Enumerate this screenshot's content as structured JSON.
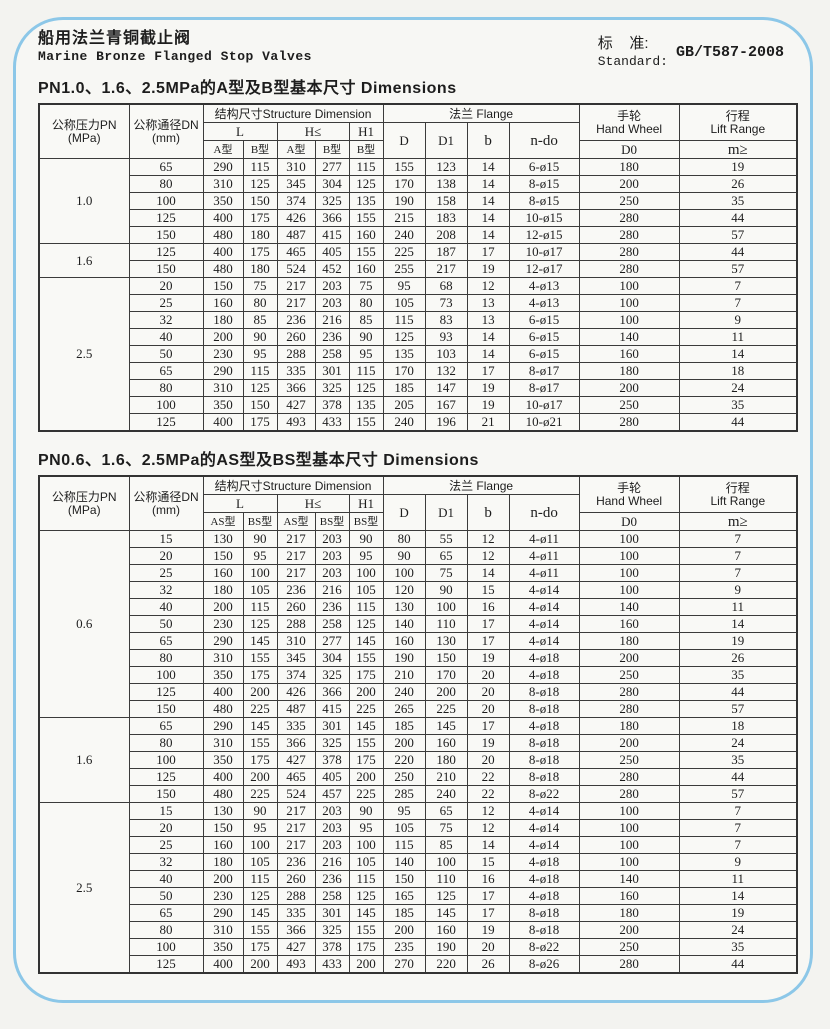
{
  "page": {
    "title_zh": "船用法兰青铜截止阀",
    "title_en": "Marine Bronze Flanged Stop Valves",
    "standard": {
      "label_zh": "标    准:",
      "label_en": "Standard:",
      "value": "GB/T587-2008"
    }
  },
  "colors": {
    "frame_border": "#8cc7e8",
    "grid_line": "#3b3b3b",
    "background": "#f7f7f4"
  },
  "tables": [
    {
      "title": "PN1.0、1.6、2.5MPa的A型及B型基本尺寸 Dimensions",
      "header": {
        "pressure_zh": "公称压力PN",
        "pressure_unit": "(MPa)",
        "dn_zh": "公称通径DN",
        "dn_unit": "(mm)",
        "structure": "结构尺寸Structure Dimension",
        "col_L": "L",
        "col_H": "H≤",
        "col_H1": "H1",
        "type_a": "A型",
        "type_b": "B型",
        "flange": "法兰 Flange",
        "col_D": "D",
        "col_D1": "D1",
        "col_b": "b",
        "col_ndo": "n-do",
        "handwheel_zh": "手轮",
        "handwheel_en": "Hand Wheel",
        "col_D0": "D0",
        "lift_zh": "行程",
        "lift_en": "Lift Range",
        "col_m": "m≥"
      },
      "sections": [
        {
          "pn": "1.0",
          "rows": [
            [
              "65",
              "290",
              "115",
              "310",
              "277",
              "115",
              "155",
              "123",
              "14",
              "6-ø15",
              "180",
              "19"
            ],
            [
              "80",
              "310",
              "125",
              "345",
              "304",
              "125",
              "170",
              "138",
              "14",
              "8-ø15",
              "200",
              "26"
            ],
            [
              "100",
              "350",
              "150",
              "374",
              "325",
              "135",
              "190",
              "158",
              "14",
              "8-ø15",
              "250",
              "35"
            ],
            [
              "125",
              "400",
              "175",
              "426",
              "366",
              "155",
              "215",
              "183",
              "14",
              "10-ø15",
              "280",
              "44"
            ],
            [
              "150",
              "480",
              "180",
              "487",
              "415",
              "160",
              "240",
              "208",
              "14",
              "12-ø15",
              "280",
              "57"
            ]
          ]
        },
        {
          "pn": "1.6",
          "rows": [
            [
              "125",
              "400",
              "175",
              "465",
              "405",
              "155",
              "225",
              "187",
              "17",
              "10-ø17",
              "280",
              "44"
            ],
            [
              "150",
              "480",
              "180",
              "524",
              "452",
              "160",
              "255",
              "217",
              "19",
              "12-ø17",
              "280",
              "57"
            ]
          ]
        },
        {
          "pn": "2.5",
          "rows": [
            [
              "20",
              "150",
              "75",
              "217",
              "203",
              "75",
              "95",
              "68",
              "12",
              "4-ø13",
              "100",
              "7"
            ],
            [
              "25",
              "160",
              "80",
              "217",
              "203",
              "80",
              "105",
              "73",
              "13",
              "4-ø13",
              "100",
              "7"
            ],
            [
              "32",
              "180",
              "85",
              "236",
              "216",
              "85",
              "115",
              "83",
              "13",
              "6-ø15",
              "100",
              "9"
            ],
            [
              "40",
              "200",
              "90",
              "260",
              "236",
              "90",
              "125",
              "93",
              "14",
              "6-ø15",
              "140",
              "11"
            ],
            [
              "50",
              "230",
              "95",
              "288",
              "258",
              "95",
              "135",
              "103",
              "14",
              "6-ø15",
              "160",
              "14"
            ],
            [
              "65",
              "290",
              "115",
              "335",
              "301",
              "115",
              "170",
              "132",
              "17",
              "8-ø17",
              "180",
              "18"
            ],
            [
              "80",
              "310",
              "125",
              "366",
              "325",
              "125",
              "185",
              "147",
              "19",
              "8-ø17",
              "200",
              "24"
            ],
            [
              "100",
              "350",
              "150",
              "427",
              "378",
              "135",
              "205",
              "167",
              "19",
              "10-ø17",
              "250",
              "35"
            ],
            [
              "125",
              "400",
              "175",
              "493",
              "433",
              "155",
              "240",
              "196",
              "21",
              "10-ø21",
              "280",
              "44"
            ]
          ]
        }
      ]
    },
    {
      "title": "PN0.6、1.6、2.5MPa的AS型及BS型基本尺寸 Dimensions",
      "header": {
        "pressure_zh": "公称压力PN",
        "pressure_unit": "(MPa)",
        "dn_zh": "公称通径DN",
        "dn_unit": "(mm)",
        "structure": "结构尺寸Structure Dimension",
        "col_L": "L",
        "col_H": "H≤",
        "col_H1": "H1",
        "type_a": "AS型",
        "type_b": "BS型",
        "flange": "法兰 Flange",
        "col_D": "D",
        "col_D1": "D1",
        "col_b": "b",
        "col_ndo": "n-do",
        "handwheel_zh": "手轮",
        "handwheel_en": "Hand Wheel",
        "col_D0": "D0",
        "lift_zh": "行程",
        "lift_en": "Lift Range",
        "col_m": "m≥"
      },
      "sections": [
        {
          "pn": "0.6",
          "rows": [
            [
              "15",
              "130",
              "90",
              "217",
              "203",
              "90",
              "80",
              "55",
              "12",
              "4-ø11",
              "100",
              "7"
            ],
            [
              "20",
              "150",
              "95",
              "217",
              "203",
              "95",
              "90",
              "65",
              "12",
              "4-ø11",
              "100",
              "7"
            ],
            [
              "25",
              "160",
              "100",
              "217",
              "203",
              "100",
              "100",
              "75",
              "14",
              "4-ø11",
              "100",
              "7"
            ],
            [
              "32",
              "180",
              "105",
              "236",
              "216",
              "105",
              "120",
              "90",
              "15",
              "4-ø14",
              "100",
              "9"
            ],
            [
              "40",
              "200",
              "115",
              "260",
              "236",
              "115",
              "130",
              "100",
              "16",
              "4-ø14",
              "140",
              "11"
            ],
            [
              "50",
              "230",
              "125",
              "288",
              "258",
              "125",
              "140",
              "110",
              "17",
              "4-ø14",
              "160",
              "14"
            ],
            [
              "65",
              "290",
              "145",
              "310",
              "277",
              "145",
              "160",
              "130",
              "17",
              "4-ø14",
              "180",
              "19"
            ],
            [
              "80",
              "310",
              "155",
              "345",
              "304",
              "155",
              "190",
              "150",
              "19",
              "4-ø18",
              "200",
              "26"
            ],
            [
              "100",
              "350",
              "175",
              "374",
              "325",
              "175",
              "210",
              "170",
              "20",
              "4-ø18",
              "250",
              "35"
            ],
            [
              "125",
              "400",
              "200",
              "426",
              "366",
              "200",
              "240",
              "200",
              "20",
              "8-ø18",
              "280",
              "44"
            ],
            [
              "150",
              "480",
              "225",
              "487",
              "415",
              "225",
              "265",
              "225",
              "20",
              "8-ø18",
              "280",
              "57"
            ]
          ]
        },
        {
          "pn": "1.6",
          "rows": [
            [
              "65",
              "290",
              "145",
              "335",
              "301",
              "145",
              "185",
              "145",
              "17",
              "4-ø18",
              "180",
              "18"
            ],
            [
              "80",
              "310",
              "155",
              "366",
              "325",
              "155",
              "200",
              "160",
              "19",
              "8-ø18",
              "200",
              "24"
            ],
            [
              "100",
              "350",
              "175",
              "427",
              "378",
              "175",
              "220",
              "180",
              "20",
              "8-ø18",
              "250",
              "35"
            ],
            [
              "125",
              "400",
              "200",
              "465",
              "405",
              "200",
              "250",
              "210",
              "22",
              "8-ø18",
              "280",
              "44"
            ],
            [
              "150",
              "480",
              "225",
              "524",
              "457",
              "225",
              "285",
              "240",
              "22",
              "8-ø22",
              "280",
              "57"
            ]
          ]
        },
        {
          "pn": "2.5",
          "rows": [
            [
              "15",
              "130",
              "90",
              "217",
              "203",
              "90",
              "95",
              "65",
              "12",
              "4-ø14",
              "100",
              "7"
            ],
            [
              "20",
              "150",
              "95",
              "217",
              "203",
              "95",
              "105",
              "75",
              "12",
              "4-ø14",
              "100",
              "7"
            ],
            [
              "25",
              "160",
              "100",
              "217",
              "203",
              "100",
              "115",
              "85",
              "14",
              "4-ø14",
              "100",
              "7"
            ],
            [
              "32",
              "180",
              "105",
              "236",
              "216",
              "105",
              "140",
              "100",
              "15",
              "4-ø18",
              "100",
              "9"
            ],
            [
              "40",
              "200",
              "115",
              "260",
              "236",
              "115",
              "150",
              "110",
              "16",
              "4-ø18",
              "140",
              "11"
            ],
            [
              "50",
              "230",
              "125",
              "288",
              "258",
              "125",
              "165",
              "125",
              "17",
              "4-ø18",
              "160",
              "14"
            ],
            [
              "65",
              "290",
              "145",
              "335",
              "301",
              "145",
              "185",
              "145",
              "17",
              "8-ø18",
              "180",
              "19"
            ],
            [
              "80",
              "310",
              "155",
              "366",
              "325",
              "155",
              "200",
              "160",
              "19",
              "8-ø18",
              "200",
              "24"
            ],
            [
              "100",
              "350",
              "175",
              "427",
              "378",
              "175",
              "235",
              "190",
              "20",
              "8-ø22",
              "250",
              "35"
            ],
            [
              "125",
              "400",
              "200",
              "493",
              "433",
              "200",
              "270",
              "220",
              "26",
              "8-ø26",
              "280",
              "44"
            ]
          ]
        }
      ]
    }
  ]
}
